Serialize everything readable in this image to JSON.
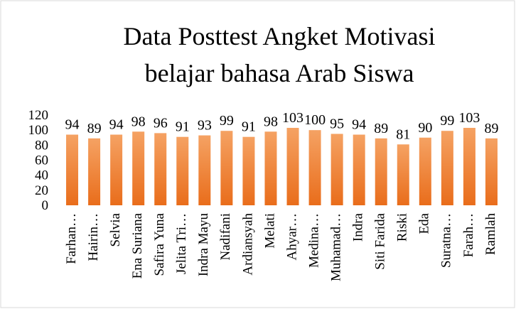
{
  "chart_data": {
    "type": "bar",
    "title": [
      "Data Posttest Angket Motivasi",
      "belajar bahasa Arab Siswa"
    ],
    "categories": [
      "Farhan…",
      "Hairin…",
      "Selvia",
      "Ena Suriana",
      "Safira Yuna",
      "Jelita Tri…",
      "Indra Mayu",
      "Nadifani",
      "Ardiansyah",
      "Melati",
      "Ahyar…",
      "Medina…",
      "Muhamad…",
      "Indra",
      "Siti Farida",
      "Riski",
      "Eda",
      "Suratna…",
      "Farah…",
      "Ramlah"
    ],
    "values": [
      94,
      89,
      94,
      98,
      96,
      91,
      93,
      99,
      91,
      98,
      103,
      100,
      95,
      94,
      89,
      81,
      90,
      99,
      103,
      89
    ],
    "color": "#ed7d31",
    "ylim": [
      0,
      120
    ],
    "yticks": [
      0,
      20,
      40,
      60,
      80,
      100,
      120
    ],
    "grid": false
  }
}
